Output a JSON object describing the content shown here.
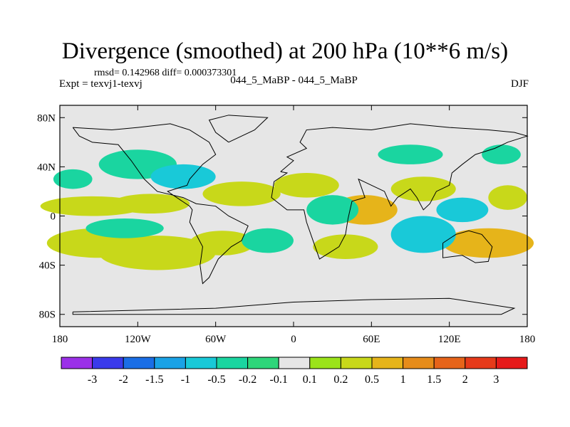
{
  "chart_data": {
    "type": "contour_map",
    "title": "Divergence (smoothed) at 200 hPa (10**6 m/s)",
    "rmsd_text": "rmsd= 0.142968  diff= 0.000373301",
    "experiment": "Expt = texvj1-texvj",
    "cases": "044_5_MaBP - 044_5_MaBP",
    "season": "DJF",
    "x_ticks": [
      "180",
      "120W",
      "60W",
      "0",
      "60E",
      "120E",
      "180"
    ],
    "x_tick_lon": [
      -180,
      -120,
      -60,
      0,
      60,
      120,
      180
    ],
    "y_ticks": [
      "80N",
      "40N",
      "0",
      "40S",
      "80S"
    ],
    "y_tick_lat": [
      80,
      40,
      0,
      -40,
      -80
    ],
    "xlim": [
      -180,
      180
    ],
    "ylim": [
      -90,
      90
    ],
    "colorbar_levels": [
      "-3",
      "-2",
      "-1.5",
      "-1",
      "-0.5",
      "-0.2",
      "-0.1",
      "0.1",
      "0.2",
      "0.5",
      "1",
      "1.5",
      "2",
      "3"
    ],
    "colorbar_colors": [
      "#9b30e8",
      "#3a3aeb",
      "#1a6ee6",
      "#1aa2e6",
      "#19c9d8",
      "#1ad5a0",
      "#2ed67a",
      "#e6e6e6",
      "#9be31a",
      "#c8d81a",
      "#e6b41a",
      "#e68c1a",
      "#e6641a",
      "#e63a1a",
      "#e61a1a"
    ],
    "background_color": "#e6e6e6",
    "regions": [
      {
        "lon": -155,
        "lat": 8,
        "w": 40,
        "h": 8,
        "level": "0.2"
      },
      {
        "lon": -110,
        "lat": 10,
        "w": 30,
        "h": 8,
        "level": "0.2"
      },
      {
        "lon": -150,
        "lat": -22,
        "w": 40,
        "h": 12,
        "level": "0.2"
      },
      {
        "lon": -105,
        "lat": -30,
        "w": 45,
        "h": 14,
        "level": "0.2"
      },
      {
        "lon": -55,
        "lat": -22,
        "w": 25,
        "h": 10,
        "level": "0.2"
      },
      {
        "lon": -40,
        "lat": 18,
        "w": 30,
        "h": 10,
        "level": "0.2"
      },
      {
        "lon": 10,
        "lat": 25,
        "w": 25,
        "h": 10,
        "level": "0.2"
      },
      {
        "lon": 55,
        "lat": 5,
        "w": 25,
        "h": 12,
        "level": "0.5"
      },
      {
        "lon": 40,
        "lat": -25,
        "w": 25,
        "h": 10,
        "level": "0.2"
      },
      {
        "lon": 100,
        "lat": 22,
        "w": 25,
        "h": 10,
        "level": "0.2"
      },
      {
        "lon": 150,
        "lat": -22,
        "w": 35,
        "h": 12,
        "level": "0.5"
      },
      {
        "lon": 165,
        "lat": 15,
        "w": 15,
        "h": 10,
        "level": "0.2"
      },
      {
        "lon": -170,
        "lat": 30,
        "w": 15,
        "h": 8,
        "level": "-0.2"
      },
      {
        "lon": -120,
        "lat": 42,
        "w": 30,
        "h": 12,
        "level": "-0.2"
      },
      {
        "lon": -85,
        "lat": 32,
        "w": 25,
        "h": 10,
        "level": "-0.5"
      },
      {
        "lon": -130,
        "lat": -10,
        "w": 30,
        "h": 8,
        "level": "-0.2"
      },
      {
        "lon": -20,
        "lat": -20,
        "w": 20,
        "h": 10,
        "level": "-0.2"
      },
      {
        "lon": 30,
        "lat": 5,
        "w": 20,
        "h": 12,
        "level": "-0.2"
      },
      {
        "lon": 100,
        "lat": -15,
        "w": 25,
        "h": 15,
        "level": "-0.5"
      },
      {
        "lon": 130,
        "lat": 5,
        "w": 20,
        "h": 10,
        "level": "-0.5"
      },
      {
        "lon": 90,
        "lat": 50,
        "w": 25,
        "h": 8,
        "level": "-0.2"
      },
      {
        "lon": 160,
        "lat": 50,
        "w": 15,
        "h": 8,
        "level": "-0.2"
      }
    ]
  }
}
